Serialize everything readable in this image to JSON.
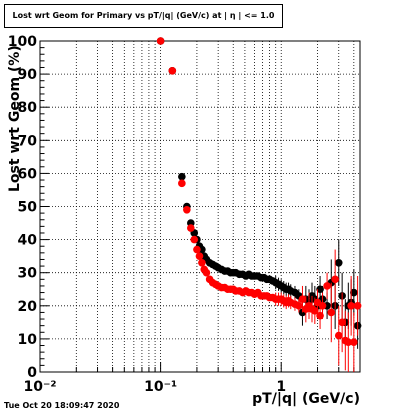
{
  "chart_data": {
    "type": "scatter",
    "title": "Lost wrt Geom for Primary vs pT/|q| (GeV/c) at | η | <= 1.0",
    "xlabel": "pT/|q| (GeV/c)",
    "ylabel": "Lost wrt Geom (%)",
    "x_scale": "log",
    "xlim": [
      0.01,
      4.5
    ],
    "ylim": [
      0,
      100
    ],
    "y_ticks": [
      "0",
      "10",
      "20",
      "30",
      "40",
      "50",
      "60",
      "70",
      "80",
      "90",
      "100"
    ],
    "x_ticks": [
      {
        "label": "10⁻²",
        "value": 0.01
      },
      {
        "label": "10⁻¹",
        "value": 0.1
      },
      {
        "label": "1",
        "value": 1
      }
    ],
    "grid": true,
    "series": [
      {
        "color": "#000000",
        "points": [
          [
            0.1,
            100
          ],
          [
            0.125,
            91
          ],
          [
            0.15,
            59
          ],
          [
            0.165,
            50
          ],
          [
            0.178,
            45
          ],
          [
            0.19,
            42
          ],
          [
            0.2,
            40
          ],
          [
            0.21,
            38
          ],
          [
            0.22,
            37
          ],
          [
            0.23,
            35
          ],
          [
            0.24,
            34
          ],
          [
            0.255,
            33
          ],
          [
            0.27,
            32.5
          ],
          [
            0.285,
            32
          ],
          [
            0.3,
            31.5
          ],
          [
            0.32,
            31
          ],
          [
            0.34,
            30.5
          ],
          [
            0.36,
            30.5
          ],
          [
            0.38,
            30
          ],
          [
            0.4,
            30
          ],
          [
            0.42,
            30
          ],
          [
            0.45,
            29.5
          ],
          [
            0.48,
            29.5
          ],
          [
            0.51,
            29
          ],
          [
            0.54,
            29.5
          ],
          [
            0.57,
            29
          ],
          [
            0.6,
            29
          ],
          [
            0.64,
            29
          ],
          [
            0.68,
            28.5
          ],
          [
            0.72,
            28.5
          ],
          [
            0.76,
            28
          ],
          [
            0.8,
            28
          ],
          [
            0.85,
            27.5
          ],
          [
            0.9,
            27
          ],
          [
            0.95,
            26.5
          ],
          [
            1.0,
            26
          ],
          [
            1.05,
            25.5
          ],
          [
            1.1,
            25
          ],
          [
            1.15,
            25
          ],
          [
            1.2,
            24.5
          ],
          [
            1.3,
            24
          ],
          [
            1.4,
            23
          ],
          [
            1.5,
            18
          ],
          [
            1.6,
            22
          ],
          [
            1.7,
            21
          ],
          [
            1.8,
            23
          ],
          [
            1.9,
            22
          ],
          [
            2.0,
            20
          ],
          [
            2.1,
            25
          ],
          [
            2.2,
            22
          ],
          [
            2.4,
            20
          ],
          [
            2.6,
            27
          ],
          [
            2.8,
            20
          ],
          [
            3.0,
            33
          ],
          [
            3.2,
            23
          ],
          [
            3.4,
            15
          ],
          [
            3.6,
            20
          ],
          [
            3.8,
            21
          ],
          [
            4.0,
            24
          ],
          [
            4.3,
            14
          ]
        ]
      },
      {
        "color": "#ff0000",
        "points": [
          [
            0.1,
            100
          ],
          [
            0.125,
            91
          ],
          [
            0.15,
            57
          ],
          [
            0.165,
            49
          ],
          [
            0.178,
            43.5
          ],
          [
            0.19,
            40
          ],
          [
            0.2,
            37
          ],
          [
            0.21,
            35
          ],
          [
            0.22,
            33
          ],
          [
            0.23,
            31
          ],
          [
            0.24,
            30
          ],
          [
            0.255,
            28
          ],
          [
            0.27,
            27
          ],
          [
            0.285,
            26.5
          ],
          [
            0.3,
            26
          ],
          [
            0.32,
            25.5
          ],
          [
            0.34,
            25.5
          ],
          [
            0.36,
            25
          ],
          [
            0.38,
            25
          ],
          [
            0.4,
            25
          ],
          [
            0.42,
            24.5
          ],
          [
            0.45,
            24.5
          ],
          [
            0.48,
            24
          ],
          [
            0.51,
            24.5
          ],
          [
            0.54,
            24
          ],
          [
            0.57,
            24
          ],
          [
            0.6,
            23.5
          ],
          [
            0.64,
            24
          ],
          [
            0.68,
            23
          ],
          [
            0.72,
            23
          ],
          [
            0.76,
            23
          ],
          [
            0.8,
            22.5
          ],
          [
            0.85,
            22.5
          ],
          [
            0.9,
            22
          ],
          [
            0.95,
            22
          ],
          [
            1.0,
            22
          ],
          [
            1.05,
            21.5
          ],
          [
            1.1,
            21
          ],
          [
            1.15,
            21.5
          ],
          [
            1.2,
            21
          ],
          [
            1.3,
            20.5
          ],
          [
            1.4,
            20
          ],
          [
            1.5,
            22
          ],
          [
            1.6,
            19
          ],
          [
            1.7,
            20
          ],
          [
            1.8,
            19
          ],
          [
            1.9,
            18.5
          ],
          [
            2.0,
            21
          ],
          [
            2.1,
            17
          ],
          [
            2.2,
            20
          ],
          [
            2.4,
            26
          ],
          [
            2.6,
            18
          ],
          [
            2.8,
            28
          ],
          [
            3.0,
            11
          ],
          [
            3.2,
            15
          ],
          [
            3.4,
            9.5
          ],
          [
            3.6,
            9
          ],
          [
            3.8,
            20
          ],
          [
            4.0,
            9
          ],
          [
            4.3,
            20
          ]
        ]
      }
    ]
  },
  "footer": {
    "timestamp": "Tue Oct 20 18:09:47 2020"
  }
}
